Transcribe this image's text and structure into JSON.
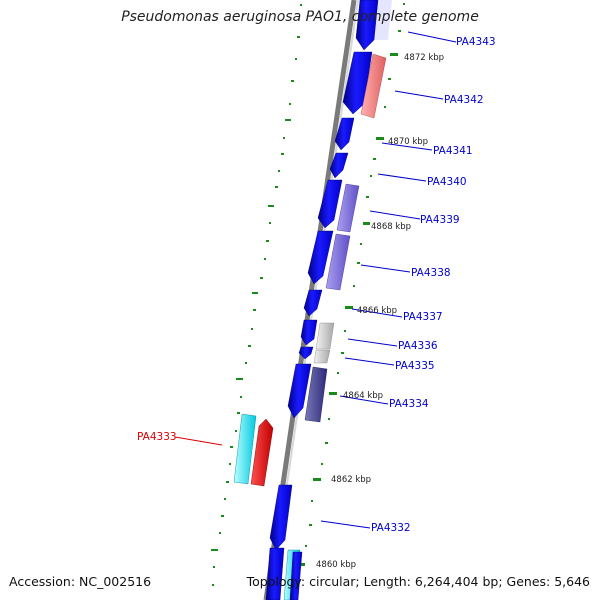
{
  "title": "Pseudomonas aeruginosa PAO1, complete genome",
  "footer": {
    "accession": "Accession: NC_002516",
    "topology": "Topology: circular; Length: 6,264,404 bp; Genes: 5,646"
  },
  "scale_labels": [
    "4872 kbp",
    "4870 kbp",
    "4868 kbp",
    "4866 kbp",
    "4864 kbp",
    "4862 kbp",
    "4860 kbp"
  ],
  "gene_labels": [
    {
      "name": "PA4343",
      "color": "#0000cc"
    },
    {
      "name": "PA4342",
      "color": "#0000cc"
    },
    {
      "name": "PA4341",
      "color": "#0000cc"
    },
    {
      "name": "PA4340",
      "color": "#0000cc"
    },
    {
      "name": "PA4339",
      "color": "#0000cc"
    },
    {
      "name": "PA4338",
      "color": "#0000cc"
    },
    {
      "name": "PA4337",
      "color": "#0000cc"
    },
    {
      "name": "PA4336",
      "color": "#0000cc"
    },
    {
      "name": "PA4335",
      "color": "#0000cc"
    },
    {
      "name": "PA4334",
      "color": "#0000cc"
    },
    {
      "name": "PA4333",
      "color": "#dd0000"
    },
    {
      "name": "PA4332",
      "color": "#0000cc"
    }
  ]
}
